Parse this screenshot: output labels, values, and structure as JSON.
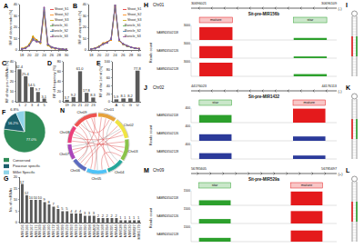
{
  "chart_data": [
    {
      "type": "line",
      "panel": "A",
      "y_label": "RF of clean reads (%)",
      "x": [
        18,
        19,
        20,
        21,
        22,
        23,
        24,
        25,
        26,
        27,
        28,
        29,
        30
      ],
      "xlim": [
        17.5,
        30.5
      ],
      "xticks": [
        18,
        20,
        22,
        24,
        26,
        28,
        30
      ],
      "ylim": [
        0,
        40
      ],
      "yticks": [
        0,
        10,
        20,
        30,
        40
      ],
      "legend": "top right",
      "series": [
        {
          "name": "Shoot_S1",
          "color": "#e41a1c",
          "values": [
            1.2,
            2.0,
            4.8,
            11.5,
            8.6,
            6.1,
            33.5,
            4.2,
            2.1,
            1.3,
            0.9,
            0.6,
            0.4
          ]
        },
        {
          "name": "Shoot_S2",
          "color": "#ff7f00",
          "values": [
            1.0,
            1.8,
            4.5,
            10.9,
            8.2,
            6.4,
            34.6,
            4.5,
            2.3,
            1.4,
            0.8,
            0.5,
            0.3
          ]
        },
        {
          "name": "Shoot_S3",
          "color": "#c9a800",
          "values": [
            1.3,
            2.2,
            5.0,
            12.1,
            8.9,
            6.0,
            32.8,
            4.0,
            2.0,
            1.2,
            0.9,
            0.6,
            0.4
          ]
        },
        {
          "name": "Panicle_S1",
          "color": "#4daf4a",
          "values": [
            0.8,
            1.5,
            3.9,
            9.2,
            7.4,
            7.1,
            36.8,
            5.1,
            2.6,
            1.6,
            1.0,
            0.7,
            0.5
          ]
        },
        {
          "name": "Panicle_S2",
          "color": "#377eb8",
          "values": [
            0.9,
            1.6,
            4.1,
            9.8,
            7.7,
            6.9,
            35.9,
            4.9,
            2.4,
            1.5,
            1.0,
            0.6,
            0.4
          ]
        },
        {
          "name": "Panicle_S3",
          "color": "#984ea3",
          "values": [
            0.7,
            1.4,
            3.7,
            8.8,
            7.2,
            7.3,
            37.4,
            5.3,
            2.7,
            1.7,
            1.1,
            0.7,
            0.5
          ]
        }
      ]
    },
    {
      "type": "line",
      "panel": "B",
      "y_label": "RF of uniq reads (%)",
      "x": [
        18,
        19,
        20,
        21,
        22,
        23,
        24,
        25,
        26,
        27,
        28,
        29,
        30
      ],
      "xlim": [
        17.5,
        30.5
      ],
      "xticks": [
        18,
        20,
        22,
        24,
        26,
        28,
        30
      ],
      "ylim": [
        0,
        40
      ],
      "yticks": [
        0,
        10,
        20,
        30,
        40
      ],
      "legend": "top right",
      "series": [
        {
          "name": "Shoot_S1",
          "color": "#e41a1c",
          "values": [
            0.9,
            1.6,
            3.2,
            5.8,
            6.9,
            9.1,
            38.2,
            8.4,
            5.1,
            3.4,
            2.3,
            1.5,
            1.1
          ]
        },
        {
          "name": "Shoot_S2",
          "color": "#ff7f00",
          "values": [
            1.0,
            1.7,
            3.4,
            6.0,
            7.1,
            8.8,
            37.5,
            8.6,
            5.3,
            3.5,
            2.4,
            1.6,
            1.2
          ]
        },
        {
          "name": "Shoot_S3",
          "color": "#c9a800",
          "values": [
            0.8,
            1.5,
            3.1,
            5.6,
            6.7,
            9.3,
            38.9,
            8.2,
            5.0,
            3.3,
            2.2,
            1.5,
            1.0
          ]
        },
        {
          "name": "Panicle_S1",
          "color": "#4daf4a",
          "values": [
            0.7,
            1.3,
            2.8,
            5.1,
            6.3,
            9.8,
            39.4,
            8.9,
            5.4,
            3.6,
            2.4,
            1.6,
            1.1
          ]
        },
        {
          "name": "Panicle_S2",
          "color": "#377eb8",
          "values": [
            0.8,
            1.4,
            2.9,
            5.3,
            6.5,
            9.6,
            39.0,
            8.7,
            5.3,
            3.5,
            2.3,
            1.5,
            1.1
          ]
        },
        {
          "name": "Panicle_S3",
          "color": "#984ea3",
          "values": [
            0.7,
            1.2,
            2.7,
            5.0,
            6.2,
            10.0,
            39.6,
            9.0,
            5.5,
            3.7,
            2.5,
            1.6,
            1.2
          ]
        }
      ]
    },
    {
      "type": "bar",
      "panel": "C",
      "y_label": "RF of the pre-miRNAs (%)",
      "categories": [
        "1",
        "2",
        "3",
        "4",
        "5"
      ],
      "values": [
        32.4,
        25.4,
        14.5,
        9.7,
        3.1
      ],
      "color": "#5a5a5a",
      "ylim": [
        0,
        40
      ],
      "yticks": [
        0,
        10,
        20,
        30,
        40
      ],
      "data_labels": true
    },
    {
      "type": "bar",
      "panel": "D",
      "y_label": "RF of frequency (%)",
      "categories": [
        "19",
        "20",
        "21",
        "22",
        "23"
      ],
      "values": [
        3.7,
        9.2,
        61.0,
        17.8,
        8.3
      ],
      "value_labels": [
        "3.7",
        "9.2",
        "61.0",
        "17.8",
        "8.3"
      ],
      "color": "#5a5a5a",
      "ylim": [
        0,
        80
      ],
      "yticks": [
        0,
        20,
        40,
        60,
        80
      ],
      "data_labels": true
    },
    {
      "type": "bar",
      "panel": "E",
      "y_label": "RF of the 1st nt (%)",
      "categories": [
        "A",
        "C",
        "G",
        "U"
      ],
      "values": [
        5.9,
        8.1,
        8.2,
        77.8
      ],
      "color": "#5a5a5a",
      "ylim": [
        0,
        100
      ],
      "yticks": [
        0,
        20,
        40,
        60,
        80,
        100
      ],
      "data_labels": true
    },
    {
      "type": "pie",
      "panel": "F",
      "categories": [
        "Conserved",
        "Poaceae specific",
        "Millet Specific"
      ],
      "values": [
        77.0,
        16.2,
        6.8
      ],
      "value_labels": [
        "77.0%",
        "16.2%",
        "6.8%"
      ],
      "colors": [
        "#2e8b57",
        "#1b5e6b",
        "#8fd3e8"
      ]
    },
    {
      "type": "bar",
      "panel": "G",
      "y_label": "No. of miRNAs",
      "categories": [
        "MIR156",
        "MIR166",
        "MIR167",
        "MIR171",
        "MIR169",
        "MIR396",
        "MIR160",
        "MIR172",
        "MIR164",
        "MIR399",
        "MIR159",
        "MIR393",
        "MIR319",
        "MIR397",
        "MIR390",
        "MIR398",
        "MIR408",
        "MIR162",
        "MIR168",
        "MIR394",
        "MIR395",
        "MIR444",
        "MIR528",
        "MIR529",
        "MIR530",
        "MIR827",
        "MIR5179"
      ],
      "values": [
        17,
        12,
        10,
        10,
        10,
        9,
        8,
        7,
        6,
        5,
        5,
        4,
        4,
        4,
        3,
        3,
        3,
        2,
        2,
        2,
        2,
        2,
        1,
        1,
        1,
        1,
        1
      ],
      "color": "#5a5a5a",
      "ylim": [
        0,
        20
      ],
      "yticks": [
        0,
        5,
        10,
        15,
        20
      ],
      "data_labels": true
    }
  ],
  "circos": {
    "panel": "N",
    "chromosomes": [
      {
        "name": "Chr01",
        "length": 42.1,
        "color": "#e6a23c"
      },
      {
        "name": "Chr02",
        "length": 49.2,
        "color": "#f0e442"
      },
      {
        "name": "Chr03",
        "length": 50.7,
        "color": "#8bc34a"
      },
      {
        "name": "Chr04",
        "length": 40.4,
        "color": "#26a69a"
      },
      {
        "name": "Chr05",
        "length": 47.3,
        "color": "#4fc3f7"
      },
      {
        "name": "Chr06",
        "length": 36.0,
        "color": "#5c6bc0"
      },
      {
        "name": "Chr07",
        "length": 35.9,
        "color": "#ab47bc"
      },
      {
        "name": "Chr08",
        "length": 40.7,
        "color": "#ec407a"
      },
      {
        "name": "Chr09",
        "length": 59.0,
        "color": "#ef5350"
      }
    ],
    "links": [
      {
        "from": [
          "Chr01",
          8
        ],
        "to": [
          "Chr05",
          30
        ],
        "color": "#d62728"
      },
      {
        "from": [
          "Chr01",
          30
        ],
        "to": [
          "Chr09",
          12
        ],
        "color": "#d62728"
      },
      {
        "from": [
          "Chr02",
          12
        ],
        "to": [
          "Chr06",
          20
        ],
        "color": "#d62728"
      },
      {
        "from": [
          "Chr02",
          40
        ],
        "to": [
          "Chr08",
          15
        ],
        "color": "#d62728"
      },
      {
        "from": [
          "Chr03",
          5
        ],
        "to": [
          "Chr07",
          22
        ],
        "color": "#d62728"
      },
      {
        "from": [
          "Chr03",
          33
        ],
        "to": [
          "Chr09",
          45
        ],
        "color": "#d62728"
      },
      {
        "from": [
          "Chr04",
          18
        ],
        "to": [
          "Chr09",
          30
        ],
        "color": "#d62728"
      },
      {
        "from": [
          "Chr04",
          35
        ],
        "to": [
          "Chr01",
          20
        ],
        "color": "#d62728"
      },
      {
        "from": [
          "Chr05",
          10
        ],
        "to": [
          "Chr03",
          45
        ],
        "color": "#d62728"
      },
      {
        "from": [
          "Chr05",
          40
        ],
        "to": [
          "Chr08",
          32
        ],
        "color": "#d62728"
      },
      {
        "from": [
          "Chr06",
          8
        ],
        "to": [
          "Chr02",
          28
        ],
        "color": "#d62728"
      },
      {
        "from": [
          "Chr07",
          12
        ],
        "to": [
          "Chr09",
          52
        ],
        "color": "#d62728"
      },
      {
        "from": [
          "Chr08",
          5
        ],
        "to": [
          "Chr03",
          20
        ],
        "color": "#d62728"
      },
      {
        "from": [
          "Chr09",
          5
        ],
        "to": [
          "Chr06",
          30
        ],
        "color": "#d62728"
      },
      {
        "from": [
          "Chr01",
          38
        ],
        "to": [
          "Chr04",
          6
        ],
        "color": "#8c8c8c"
      },
      {
        "from": [
          "Chr02",
          22
        ],
        "to": [
          "Chr07",
          30
        ],
        "color": "#8c8c8c"
      },
      {
        "from": [
          "Chr05",
          22
        ],
        "to": [
          "Chr09",
          20
        ],
        "color": "#8c8c8c"
      },
      {
        "from": [
          "Chr06",
          26
        ],
        "to": [
          "Chr08",
          24
        ],
        "color": "#8c8c8c"
      }
    ]
  },
  "tracks": [
    {
      "panel": "H",
      "chrom": "Chr01",
      "start": 30696021,
      "end": 30696109,
      "strand": "(-)",
      "name": "Sit-pre-MIR156b",
      "y_label": "Reads count",
      "features": [
        {
          "label": "mature",
          "start": 30696026,
          "end": 30696046,
          "color": "#e41a1c"
        },
        {
          "label": "star",
          "start": 30696083,
          "end": 30696103,
          "color": "#2ca02c"
        }
      ],
      "samples": [
        {
          "name": "SAMN24502118",
          "ylim": [
            0,
            3000
          ],
          "yticks": [
            3000
          ],
          "segments": [
            {
              "start": 30696026,
              "end": 30696046,
              "value": 2650,
              "color": "#e41a1c"
            },
            {
              "start": 30696083,
              "end": 30696103,
              "value": 420,
              "color": "#2ca02c"
            }
          ]
        },
        {
          "name": "SAMN24502126",
          "ylim": [
            0,
            3000
          ],
          "yticks": [
            3000
          ],
          "segments": [
            {
              "start": 30696026,
              "end": 30696046,
              "value": 2480,
              "color": "#e41a1c"
            },
            {
              "start": 30696083,
              "end": 30696103,
              "value": 350,
              "color": "#2ca02c"
            }
          ]
        },
        {
          "name": "SAMN24502128",
          "ylim": [
            0,
            3000
          ],
          "yticks": [
            3000
          ],
          "segments": [
            {
              "start": 30696026,
              "end": 30696046,
              "value": 2810,
              "color": "#e41a1c"
            },
            {
              "start": 30696083,
              "end": 30696103,
              "value": 460,
              "color": "#2ca02c"
            }
          ]
        }
      ]
    },
    {
      "panel": "J",
      "chrom": "Chr02",
      "start": 44176023,
      "end": 44176113,
      "strand": "(-)",
      "name": "Sit-pre-MIR1432",
      "y_label": "Reads count",
      "features": [
        {
          "label": "star",
          "start": 44176028,
          "end": 44176048,
          "color": "#2ca02c"
        },
        {
          "label": "mature",
          "start": 44176086,
          "end": 44176106,
          "color": "#e41a1c"
        }
      ],
      "samples": [
        {
          "name": "SAMN24502118",
          "ylim": [
            0,
            400
          ],
          "yticks": [
            400
          ],
          "segments": [
            {
              "start": 44176028,
              "end": 44176048,
              "value": 210,
              "color": "#2ca02c"
            },
            {
              "start": 44176086,
              "end": 44176106,
              "value": 385,
              "color": "#e41a1c"
            }
          ]
        },
        {
          "name": "SAMN24502126",
          "ylim": [
            0,
            400
          ],
          "yticks": [
            400
          ],
          "segments": [
            {
              "start": 44176028,
              "end": 44176048,
              "value": 180,
              "color": "#2b3a9a"
            },
            {
              "start": 44176086,
              "end": 44176106,
              "value": 120,
              "color": "#2b3a9a"
            }
          ]
        },
        {
          "name": "SAMN24502128",
          "ylim": [
            0,
            400
          ],
          "yticks": [
            400
          ],
          "segments": [
            {
              "start": 44176028,
              "end": 44176048,
              "value": 160,
              "color": "#2b3a9a"
            },
            {
              "start": 44176086,
              "end": 44176106,
              "value": 95,
              "color": "#2b3a9a"
            }
          ]
        }
      ]
    },
    {
      "panel": "M",
      "chrom": "Chr09",
      "start": 56785605,
      "end": 56785697,
      "strand": "(+)",
      "name": "Sit-pre-MIR529a",
      "y_label": "Reads count",
      "features": [
        {
          "label": "star",
          "start": 56785610,
          "end": 56785630,
          "color": "#2ca02c"
        },
        {
          "label": "mature",
          "start": 56785668,
          "end": 56785688,
          "color": "#e41a1c"
        }
      ],
      "samples": [
        {
          "name": "SAMN24502118",
          "ylim": [
            0,
            1500
          ],
          "yticks": [
            1500
          ],
          "segments": [
            {
              "start": 56785610,
              "end": 56785630,
              "value": 520,
              "color": "#2ca02c"
            },
            {
              "start": 56785668,
              "end": 56785688,
              "value": 1420,
              "color": "#e41a1c"
            }
          ]
        },
        {
          "name": "SAMN24502126",
          "ylim": [
            0,
            1500
          ],
          "yticks": [
            1500
          ],
          "segments": [
            {
              "start": 56785610,
              "end": 56785630,
              "value": 460,
              "color": "#2ca02c"
            },
            {
              "start": 56785668,
              "end": 56785688,
              "value": 1280,
              "color": "#e41a1c"
            }
          ]
        },
        {
          "name": "SAMN24502128",
          "ylim": [
            0,
            1500
          ],
          "yticks": [
            1500
          ],
          "segments": [
            {
              "start": 56785610,
              "end": 56785630,
              "value": 390,
              "color": "#2ca02c"
            },
            {
              "start": 56785668,
              "end": 56785688,
              "value": 1150,
              "color": "#e41a1c"
            }
          ]
        }
      ]
    }
  ],
  "hairpins": [
    {
      "panel": "I",
      "mature_color": "#e41a1c",
      "star_color": "#2ca02c"
    },
    {
      "panel": "K",
      "mature_color": "#e41a1c",
      "star_color": "#2ca02c"
    },
    {
      "panel": "L",
      "mature_color": "#e41a1c",
      "star_color": "#2ca02c"
    }
  ]
}
